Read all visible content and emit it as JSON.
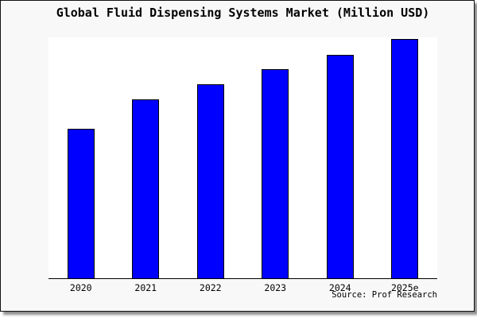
{
  "title": "Global Fluid Dispensing Systems Market (Million USD)",
  "source": "Source: Prof Research",
  "colors": {
    "bar_fill": "#0000ff",
    "bar_edge": "#000000",
    "frame_background": "#f8f8f8",
    "plot_background": "#ffffff",
    "axis": "#000000",
    "text": "#000000"
  },
  "chart_data": {
    "type": "bar",
    "title": "Global Fluid Dispensing Systems Market (Million USD)",
    "categories": [
      "2020",
      "2021",
      "2022",
      "2023",
      "2024",
      "2025e"
    ],
    "values": [
      62.6,
      74.8,
      81.1,
      87.4,
      93.4,
      100
    ],
    "values_note": "y-axis has no scale or tick labels; values are relative estimates from bar heights with 2025e = 100",
    "xlabel": "",
    "ylabel": "",
    "ylim": [
      0,
      100.7
    ],
    "grid": false,
    "legend": "none",
    "y_axis_ticks_visible": false,
    "source_label": "Source: Prof Research"
  }
}
